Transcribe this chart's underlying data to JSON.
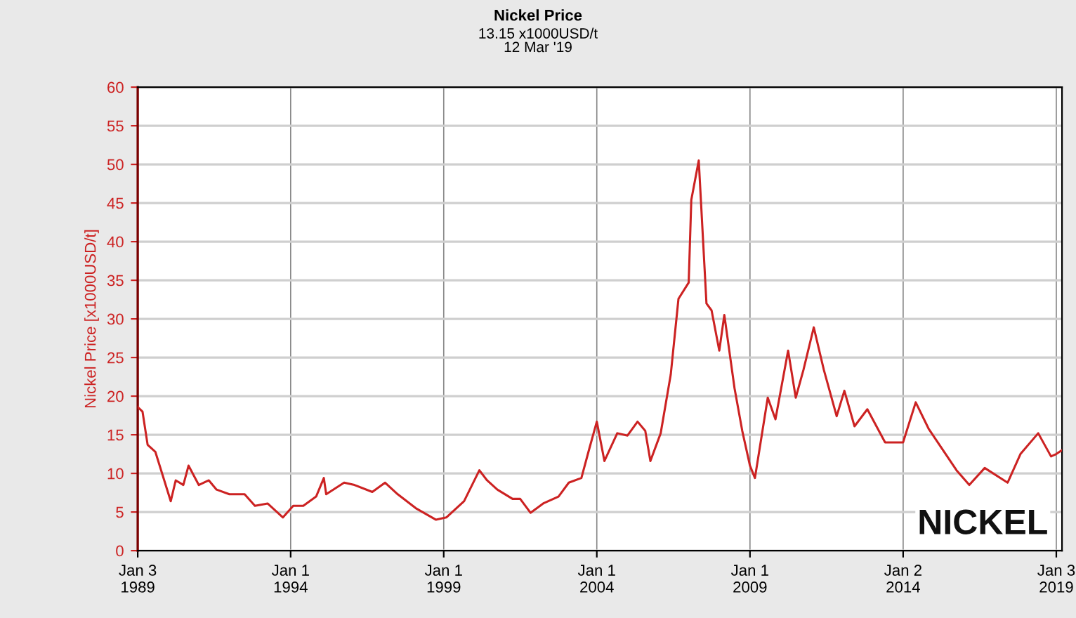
{
  "chart_data": {
    "type": "line",
    "title": "Nickel Price",
    "subtitle": "13.15 x1000USD/t\n12 Mar '19",
    "ylabel": "Nickel Price [x1000USD/t]",
    "annotations": [
      "NICKEL"
    ],
    "x": [
      "1989-01-03",
      "1989-03",
      "1989-05",
      "1989-08",
      "1990-02",
      "1990-04",
      "1990-07",
      "1990-09",
      "1991-01",
      "1991-05",
      "1991-08",
      "1992-01",
      "1992-07",
      "1992-11",
      "1993-04",
      "1993-10",
      "1994-02",
      "1994-06",
      "1994-11",
      "1995-02",
      "1995-03",
      "1995-10",
      "1996-02",
      "1996-09",
      "1997-02",
      "1997-07",
      "1998-02",
      "1998-10",
      "1999-02",
      "1999-09",
      "2000-03",
      "2000-06",
      "2000-10",
      "2001-04",
      "2001-07",
      "2001-11",
      "2002-04",
      "2002-10",
      "2003-02",
      "2003-07",
      "2003-10",
      "2004-01",
      "2004-04",
      "2004-09",
      "2005-01",
      "2005-05",
      "2005-08",
      "2005-10",
      "2006-02",
      "2006-06",
      "2006-09",
      "2007-01",
      "2007-02",
      "2007-05",
      "2007-08",
      "2007-10",
      "2008-01",
      "2008-03",
      "2008-07",
      "2008-10",
      "2009-01",
      "2009-03",
      "2009-08",
      "2009-11",
      "2010-04",
      "2010-07",
      "2010-10",
      "2011-02",
      "2011-06",
      "2011-11",
      "2012-02",
      "2012-06",
      "2012-11",
      "2013-06",
      "2014-01",
      "2014-06",
      "2014-11",
      "2015-10",
      "2016-03",
      "2016-09",
      "2017-06",
      "2017-11",
      "2018-06",
      "2018-11",
      "2019-01",
      "2019-03-12"
    ],
    "series": [
      {
        "color": "#cc2222",
        "values": [
          18.6,
          18,
          13.7,
          12.8,
          6.4,
          9.1,
          8.5,
          11,
          8.5,
          9.1,
          7.9,
          7.3,
          7.3,
          5.8,
          6.1,
          4.3,
          5.8,
          5.8,
          7,
          9.4,
          7.3,
          8.8,
          8.5,
          7.6,
          8.8,
          7.3,
          5.5,
          4,
          4.3,
          6.4,
          10.4,
          9.1,
          7.9,
          6.7,
          6.7,
          4.9,
          6.1,
          7,
          8.8,
          9.4,
          13.1,
          16.7,
          11.6,
          15.2,
          14.9,
          16.7,
          15.5,
          11.6,
          15.2,
          22.8,
          32.6,
          34.7,
          45.4,
          50.5,
          32,
          31.1,
          25.9,
          30.5,
          21,
          15.5,
          11,
          9.4,
          19.8,
          17,
          25.9,
          19.8,
          23.4,
          28.9,
          23.4,
          17.4,
          20.7,
          16.1,
          18.3,
          14,
          14,
          19.2,
          15.8,
          10.4,
          8.5,
          10.7,
          8.8,
          12.5,
          15.2,
          12.2,
          12.5,
          13
        ]
      }
    ],
    "xlim": [
      "1989-01-03",
      "2019-03-12"
    ],
    "xticks": [
      {
        "value": "1989-01-03",
        "label": "Jan 3\n1989"
      },
      {
        "value": "1994-01-01",
        "label": "Jan 1\n1994"
      },
      {
        "value": "1999-01-01",
        "label": "Jan 1\n1999"
      },
      {
        "value": "2004-01-01",
        "label": "Jan 1\n2004"
      },
      {
        "value": "2009-01-01",
        "label": "Jan 1\n2009"
      },
      {
        "value": "2014-01-02",
        "label": "Jan 2\n2014"
      },
      {
        "value": "2019-01-03",
        "label": "Jan 3\n2019"
      }
    ],
    "ylim": [
      0,
      60
    ],
    "yticks": [
      0,
      5,
      10,
      15,
      20,
      25,
      30,
      35,
      40,
      45,
      50,
      55,
      60
    ],
    "grid": true,
    "line_style": "solid",
    "marker": "none"
  }
}
